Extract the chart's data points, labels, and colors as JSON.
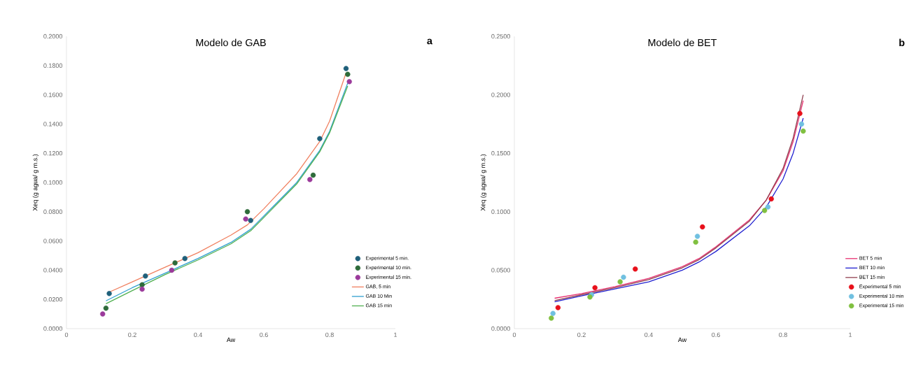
{
  "chart_data": [
    {
      "type": "scatter",
      "title": "Modelo de GAB",
      "xlabel": "Aw",
      "ylabel": "Xeq  (g agua/ g m.s.)",
      "annotations": [
        "a"
      ],
      "xlim": [
        0,
        1
      ],
      "xticks": [
        0,
        0.2,
        0.4,
        0.6,
        0.8,
        1
      ],
      "ylim": [
        0,
        0.2
      ],
      "yticks": [
        {
          "value": 0,
          "label": "0.0000"
        },
        {
          "value": 0.02,
          "label": "0.0200"
        },
        {
          "value": 0.04,
          "label": "0.0400"
        },
        {
          "value": 0.06,
          "label": "0.0600"
        },
        {
          "value": 0.08,
          "label": "0.0800"
        },
        {
          "value": 0.1,
          "label": "0.1000"
        },
        {
          "value": 0.12,
          "label": "0.1200"
        },
        {
          "value": 0.14,
          "label": "0.1400"
        },
        {
          "value": 0.16,
          "label": "0.1600"
        },
        {
          "value": 0.18,
          "label": "0.1800"
        },
        {
          "value": 0.2,
          "label": "0.2000"
        }
      ],
      "grid": false,
      "legend": "right",
      "series": [
        {
          "name": "Experimental 5 min.",
          "marker": "circle",
          "color": "#1f5f7a",
          "x": [
            0.13,
            0.24,
            0.36,
            0.56,
            0.77,
            0.85
          ],
          "values": [
            0.024,
            0.036,
            0.048,
            0.074,
            0.13,
            0.178
          ]
        },
        {
          "name": "Experimental 10 min.",
          "marker": "circle",
          "color": "#2e6b3a",
          "x": [
            0.12,
            0.23,
            0.33,
            0.55,
            0.75,
            0.855
          ],
          "values": [
            0.014,
            0.03,
            0.045,
            0.08,
            0.105,
            0.174
          ]
        },
        {
          "name": "Experimental 15 min.",
          "marker": "circle",
          "color": "#9b3a9b",
          "x": [
            0.11,
            0.23,
            0.32,
            0.545,
            0.74,
            0.86
          ],
          "values": [
            0.01,
            0.027,
            0.04,
            0.075,
            0.102,
            0.169
          ]
        },
        {
          "name": "GAB, 5 min",
          "type": "line",
          "marker": "none",
          "color": "#f08060",
          "x": [
            0.13,
            0.2,
            0.3,
            0.4,
            0.5,
            0.55,
            0.6,
            0.7,
            0.77,
            0.8,
            0.85
          ],
          "values": [
            0.025,
            0.032,
            0.042,
            0.052,
            0.064,
            0.071,
            0.082,
            0.106,
            0.128,
            0.142,
            0.175
          ]
        },
        {
          "name": "GAB 10 Min",
          "type": "line",
          "marker": "none",
          "color": "#30a0d0",
          "x": [
            0.12,
            0.2,
            0.3,
            0.4,
            0.5,
            0.56,
            0.6,
            0.7,
            0.77,
            0.8,
            0.855
          ],
          "values": [
            0.019,
            0.028,
            0.038,
            0.048,
            0.059,
            0.068,
            0.077,
            0.1,
            0.122,
            0.135,
            0.168
          ]
        },
        {
          "name": "GAB 15 min",
          "type": "line",
          "marker": "none",
          "color": "#50b050",
          "x": [
            0.12,
            0.2,
            0.3,
            0.4,
            0.5,
            0.56,
            0.6,
            0.7,
            0.77,
            0.8,
            0.855
          ],
          "values": [
            0.017,
            0.026,
            0.037,
            0.047,
            0.058,
            0.067,
            0.076,
            0.099,
            0.121,
            0.134,
            0.166
          ]
        }
      ]
    },
    {
      "type": "scatter",
      "title": "Modelo de BET",
      "xlabel": "Aw",
      "ylabel": "Xeq  (g agua/ g m.s.)",
      "annotations": [
        "b"
      ],
      "xlim": [
        0,
        1
      ],
      "xticks": [
        0,
        0.2,
        0.4,
        0.6,
        0.8,
        1
      ],
      "ylim": [
        0,
        0.25
      ],
      "yticks": [
        {
          "value": 0,
          "label": "0.0000"
        },
        {
          "value": 0.05,
          "label": "0.0500"
        },
        {
          "value": 0.1,
          "label": "0.1000"
        },
        {
          "value": 0.15,
          "label": "0.1500"
        },
        {
          "value": 0.2,
          "label": "0.2000"
        },
        {
          "value": 0.25,
          "label": "0.2500"
        }
      ],
      "grid": false,
      "legend": "right",
      "series": [
        {
          "name": "BET 5 min",
          "type": "line",
          "marker": "none",
          "color": "#e83070",
          "x": [
            0.12,
            0.2,
            0.3,
            0.4,
            0.5,
            0.55,
            0.6,
            0.7,
            0.75,
            0.8,
            0.83,
            0.86
          ],
          "values": [
            0.026,
            0.03,
            0.036,
            0.043,
            0.053,
            0.06,
            0.07,
            0.093,
            0.11,
            0.135,
            0.16,
            0.195
          ]
        },
        {
          "name": "BET 10 min",
          "type": "line",
          "marker": "none",
          "color": "#2020d0",
          "x": [
            0.12,
            0.2,
            0.3,
            0.4,
            0.5,
            0.55,
            0.6,
            0.7,
            0.75,
            0.8,
            0.83,
            0.86
          ],
          "values": [
            0.023,
            0.028,
            0.034,
            0.04,
            0.05,
            0.057,
            0.066,
            0.088,
            0.104,
            0.128,
            0.15,
            0.18
          ]
        },
        {
          "name": "BET 15 min",
          "type": "line",
          "marker": "none",
          "color": "#904050",
          "x": [
            0.12,
            0.2,
            0.3,
            0.4,
            0.5,
            0.55,
            0.6,
            0.7,
            0.75,
            0.8,
            0.83,
            0.86
          ],
          "values": [
            0.024,
            0.029,
            0.035,
            0.042,
            0.052,
            0.059,
            0.069,
            0.092,
            0.11,
            0.137,
            0.163,
            0.2
          ]
        },
        {
          "name": "Experimental 5 min",
          "marker": "circle",
          "color": "#e8101a",
          "x": [
            0.13,
            0.24,
            0.36,
            0.56,
            0.765,
            0.85
          ],
          "values": [
            0.018,
            0.035,
            0.051,
            0.087,
            0.111,
            0.184
          ]
        },
        {
          "name": "Experimental 10 min",
          "marker": "circle",
          "color": "#70c0e0",
          "x": [
            0.115,
            0.23,
            0.325,
            0.545,
            0.755,
            0.855
          ],
          "values": [
            0.013,
            0.029,
            0.044,
            0.079,
            0.104,
            0.175
          ]
        },
        {
          "name": "Experimental 15 min",
          "marker": "circle",
          "color": "#80c040",
          "x": [
            0.11,
            0.225,
            0.315,
            0.54,
            0.745,
            0.86
          ],
          "values": [
            0.009,
            0.027,
            0.04,
            0.074,
            0.101,
            0.169
          ]
        }
      ]
    }
  ]
}
